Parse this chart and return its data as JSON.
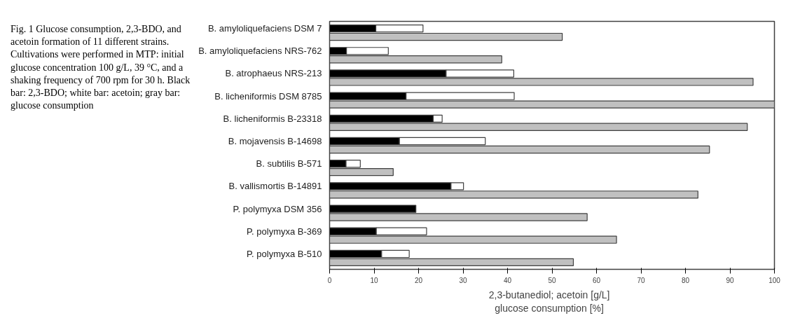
{
  "chart_data": {
    "type": "bar",
    "orientation": "horizontal",
    "stacked": true,
    "categories": [
      "B. amyloliquefaciens DSM 7",
      null,
      "B. amyloliquefaciens NRS-762",
      null,
      "B. atrophaeus NRS-213",
      null,
      "B. licheniformis DSM 8785",
      null,
      "B. licheniformis B-23318",
      null,
      "B. mojavensis B-14698",
      null,
      "B. subtilis B-571",
      null,
      "B. vallismortis B-14891",
      null,
      "P. polymyxa DSM 356",
      null,
      "P. polymyxa B-369",
      null,
      "P. polymyxa B-510",
      null
    ],
    "series": [
      {
        "color": "#000000",
        "values": [
          10.4,
          null,
          3.8,
          null,
          26.2,
          null,
          17.2,
          null,
          23.3,
          null,
          15.7,
          null,
          3.7,
          null,
          27.3,
          null,
          19.4,
          null,
          10.5,
          null,
          11.7,
          null
        ]
      },
      {
        "color": "#ffffff",
        "values": [
          10.6,
          null,
          9.4,
          null,
          15.2,
          null,
          24.3,
          null,
          2.0,
          null,
          19.3,
          null,
          3.2,
          null,
          2.8,
          null,
          0,
          null,
          11.3,
          null,
          6.2,
          null
        ]
      },
      {
        "color": "#c0c0c0",
        "values": [
          null,
          52.3,
          null,
          38.7,
          null,
          95.2,
          null,
          100,
          null,
          93.9,
          null,
          85.4,
          null,
          14.3,
          null,
          82.8,
          null,
          57.9,
          null,
          64.5,
          null,
          54.8
        ]
      }
    ],
    "xlabel": "2,3-butanediol; acetoin   [g/L]\nglucose consumption   [%]",
    "xlim": [
      0,
      100
    ],
    "xticks": [
      0,
      10,
      20,
      30,
      40,
      50,
      60,
      70,
      80,
      90,
      100
    ],
    "grid": false,
    "annotations": [
      "Fig. 1  Glucose consumption, 2,3-BDO, and acetoin formation of 11 different strains. Cultivations were performed in MTP: initial glucose concentration 100 g/L, 39 °C, and a shaking frequency of 700 rpm for 30 h. Black bar: 2,3-BDO; white bar: acetoin; gray bar: glucose consumption"
    ]
  }
}
